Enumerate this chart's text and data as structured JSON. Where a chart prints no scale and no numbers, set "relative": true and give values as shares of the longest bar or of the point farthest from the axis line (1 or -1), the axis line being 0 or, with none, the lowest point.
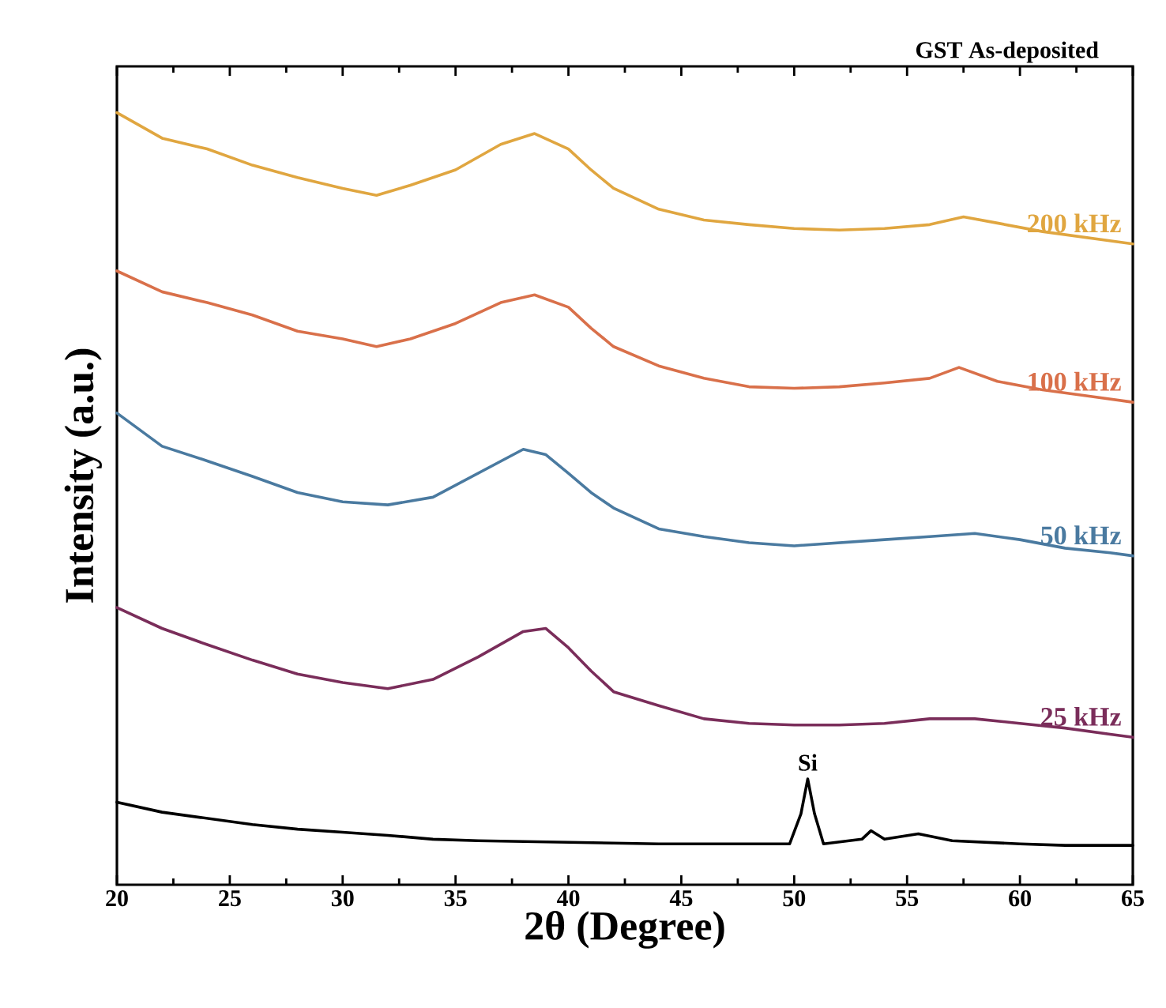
{
  "chart_data": {
    "type": "line",
    "title": "GST As-deposited",
    "xlabel": "2θ (Degree)",
    "ylabel": "Intensity (a.u.)",
    "relative": true,
    "tick_labels": "x",
    "xlim": [
      20,
      65
    ],
    "xticks": [
      20,
      25,
      30,
      35,
      40,
      45,
      50,
      55,
      60,
      65
    ],
    "annotations": [
      {
        "text": "Si",
        "x": 50.6,
        "y": 0.137
      }
    ],
    "series": [
      {
        "name": "200 kHz",
        "color": "#e0a640",
        "x": [
          20,
          22,
          24,
          26,
          28,
          30,
          31.5,
          33,
          35,
          37,
          38.5,
          40,
          41,
          42,
          44,
          46,
          48,
          50,
          52,
          54,
          56,
          57.5,
          59,
          61,
          63,
          65
        ],
        "values": [
          1.0,
          0.967,
          0.953,
          0.932,
          0.916,
          0.902,
          0.893,
          0.906,
          0.926,
          0.959,
          0.973,
          0.953,
          0.926,
          0.902,
          0.875,
          0.861,
          0.855,
          0.85,
          0.848,
          0.85,
          0.855,
          0.865,
          0.857,
          0.846,
          0.838,
          0.83
        ]
      },
      {
        "name": "100 kHz",
        "color": "#d9704a",
        "x": [
          20,
          22,
          24,
          26,
          28,
          30,
          31.5,
          33,
          35,
          37,
          38.5,
          40,
          41,
          42,
          44,
          46,
          48,
          50,
          52,
          54,
          56,
          57.3,
          59,
          61,
          63,
          65
        ],
        "values": [
          0.795,
          0.768,
          0.754,
          0.738,
          0.717,
          0.707,
          0.697,
          0.707,
          0.727,
          0.754,
          0.764,
          0.748,
          0.721,
          0.697,
          0.672,
          0.656,
          0.645,
          0.643,
          0.645,
          0.65,
          0.656,
          0.67,
          0.652,
          0.641,
          0.633,
          0.625
        ]
      },
      {
        "name": "50 kHz",
        "color": "#4a7aa0",
        "x": [
          20,
          22,
          24,
          26,
          28,
          30,
          32,
          34,
          36,
          38,
          39,
          40,
          41,
          42,
          44,
          46,
          48,
          50,
          52,
          54,
          56,
          58,
          60,
          62,
          64,
          65
        ],
        "values": [
          0.611,
          0.568,
          0.549,
          0.529,
          0.508,
          0.496,
          0.492,
          0.502,
          0.533,
          0.564,
          0.557,
          0.533,
          0.508,
          0.488,
          0.461,
          0.451,
          0.443,
          0.439,
          0.443,
          0.447,
          0.451,
          0.455,
          0.447,
          0.436,
          0.43,
          0.426
        ]
      },
      {
        "name": "25 kHz",
        "color": "#7a2d5a",
        "x": [
          20,
          22,
          24,
          26,
          28,
          30,
          32,
          34,
          36,
          38,
          39,
          40,
          41,
          42,
          44,
          46,
          48,
          50,
          52,
          54,
          56,
          58,
          60,
          62,
          64,
          65
        ],
        "values": [
          0.359,
          0.332,
          0.311,
          0.291,
          0.273,
          0.262,
          0.254,
          0.266,
          0.295,
          0.328,
          0.332,
          0.307,
          0.277,
          0.25,
          0.232,
          0.215,
          0.209,
          0.207,
          0.207,
          0.209,
          0.215,
          0.215,
          0.209,
          0.203,
          0.195,
          0.191
        ]
      },
      {
        "color": "#000000",
        "x": [
          20,
          22,
          24,
          26,
          28,
          30,
          32,
          34,
          36,
          40,
          44,
          48,
          49.8,
          50.3,
          50.6,
          50.9,
          51.3,
          53,
          53.4,
          54,
          55.5,
          57,
          60,
          62,
          65
        ],
        "values": [
          0.107,
          0.094,
          0.086,
          0.078,
          0.072,
          0.068,
          0.064,
          0.059,
          0.057,
          0.055,
          0.053,
          0.053,
          0.053,
          0.092,
          0.137,
          0.092,
          0.053,
          0.059,
          0.07,
          0.059,
          0.066,
          0.057,
          0.053,
          0.051,
          0.051
        ]
      }
    ]
  }
}
